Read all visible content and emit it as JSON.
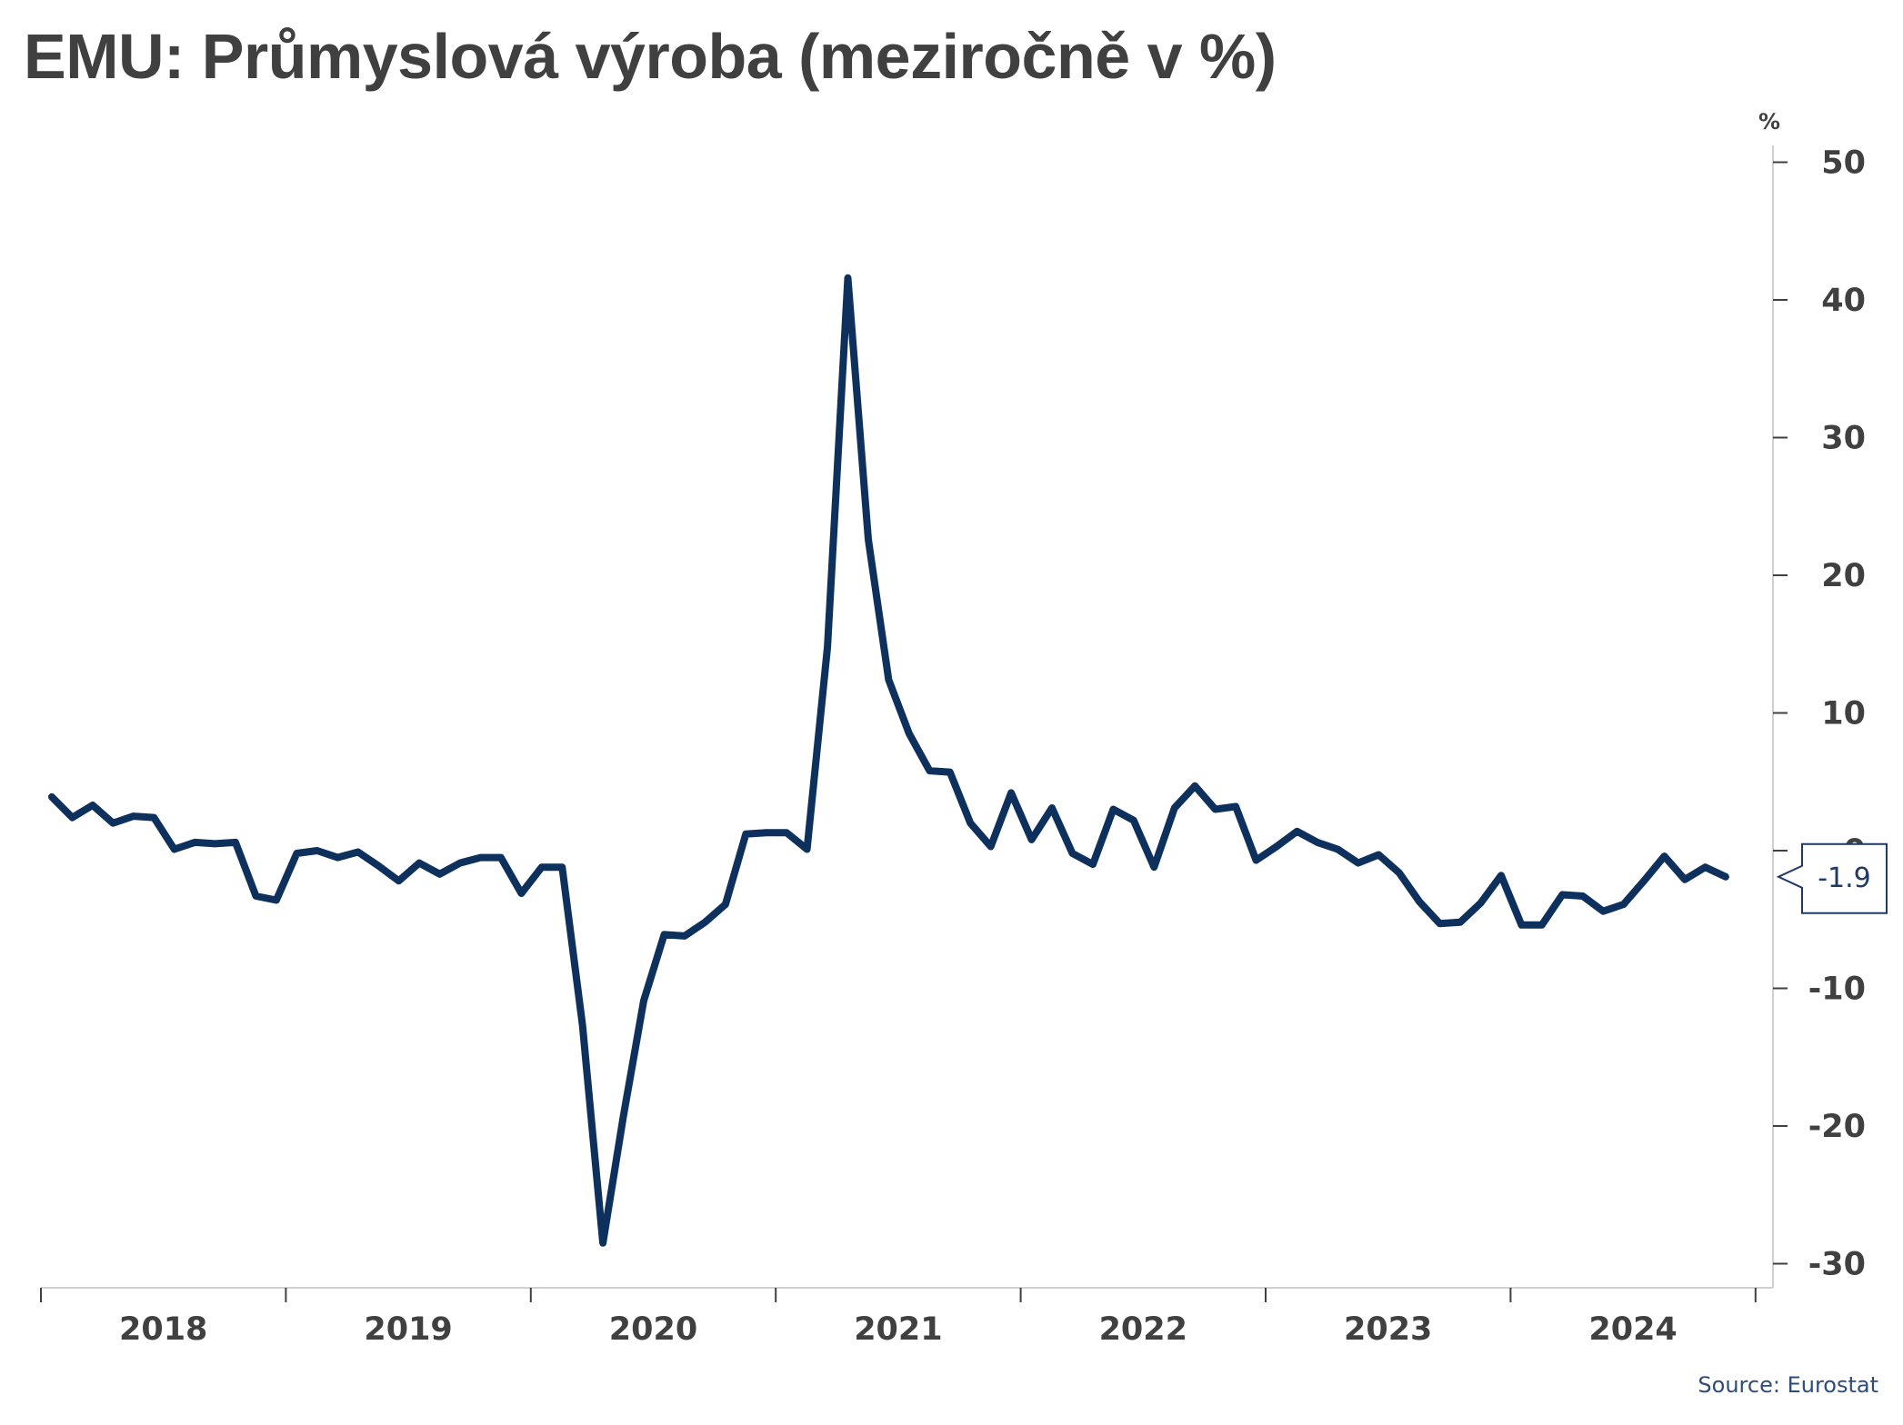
{
  "chart_data": {
    "type": "line",
    "title": "EMU: Průmyslová výroba (meziročně v %)",
    "ylabel": "%",
    "source": "Source: Eurostat",
    "ylim": [
      -31,
      53
    ],
    "yticks": [
      50,
      40,
      30,
      20,
      10,
      0,
      -10,
      -20,
      -30
    ],
    "ytick_labels": [
      "50",
      "40",
      "30",
      "20",
      "10",
      "0",
      "-10",
      "-20",
      "-30"
    ],
    "x_start": "2018-01",
    "x_labels": [
      "2018",
      "2019",
      "2020",
      "2021",
      "2022",
      "2023",
      "2024"
    ],
    "grid": false,
    "line_color": "#0d305d",
    "last_value_label": "-1.9",
    "series": [
      {
        "values": [
          3.9,
          2.4,
          3.3,
          2.0,
          2.5,
          2.4,
          0.1,
          0.6,
          0.5,
          0.6,
          -3.3,
          -3.6,
          -0.2,
          0.0,
          -0.5,
          -0.1,
          -1.1,
          -2.2,
          -0.9,
          -1.7,
          -0.9,
          -0.5,
          -0.5,
          -3.1,
          -1.2,
          -1.2,
          -12.7,
          -28.5,
          -19.3,
          -10.9,
          -6.1,
          -6.2,
          -5.2,
          -3.9,
          1.2,
          1.3,
          1.3,
          0.1,
          14.8,
          41.6,
          22.6,
          12.4,
          8.5,
          5.8,
          5.7,
          2.0,
          0.3,
          4.2,
          0.8,
          3.1,
          -0.2,
          -1.0,
          3.0,
          2.2,
          -1.2,
          3.1,
          4.7,
          3.0,
          3.2,
          -0.7,
          0.3,
          1.4,
          0.6,
          0.1,
          -0.9,
          -0.3,
          -1.6,
          -3.7,
          -5.3,
          -5.2,
          -3.8,
          -1.8,
          -5.4,
          -5.4,
          -3.2,
          -3.3,
          -4.4,
          -3.9,
          -2.2,
          -0.4,
          -2.1,
          -1.2,
          -1.9
        ]
      }
    ]
  }
}
